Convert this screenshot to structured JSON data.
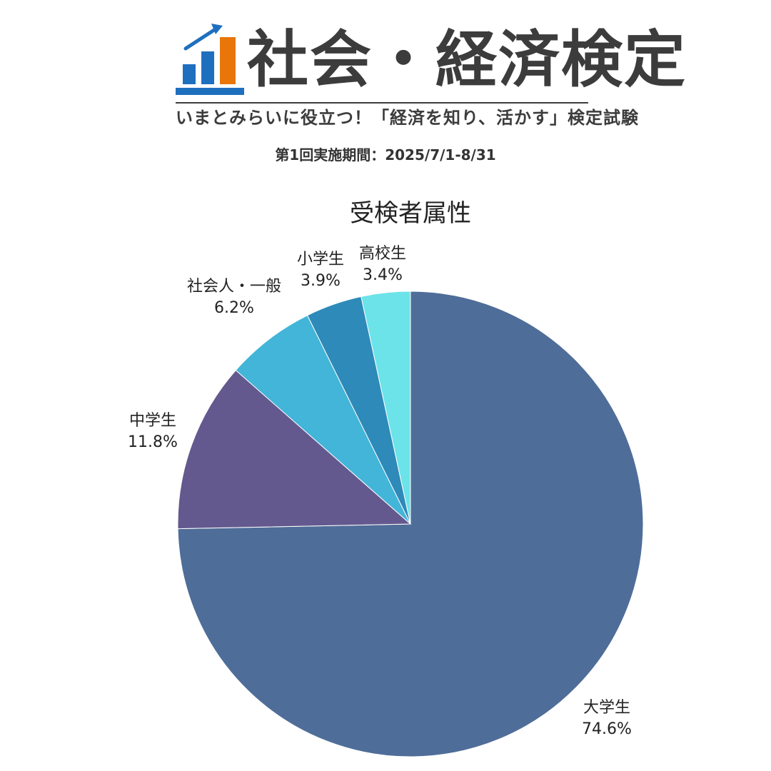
{
  "header": {
    "brand_name": "社会・経済検定",
    "tagline": "いまとみらいに役立つ！「経済を知り、活かす」検定試験",
    "period": "第1回実施期間：2025/7/1-8/31",
    "logo": {
      "icon": "bar-chart-arrow-icon",
      "colors": {
        "bars": "#1F6FBF",
        "accent_bar": "#E8760A",
        "base": "#1F6FBF"
      }
    }
  },
  "chart_data": {
    "type": "pie",
    "title": "受検者属性",
    "start_angle": "12 o'clock",
    "direction": "clockwise",
    "slices": [
      {
        "label": "大学生",
        "value": 74.6,
        "value_label": "74.6%",
        "color": "#4F6D99"
      },
      {
        "label": "中学生",
        "value": 11.8,
        "value_label": "11.8%",
        "color": "#64598E"
      },
      {
        "label": "社会人・一般",
        "value": 6.2,
        "value_label": "6.2%",
        "color": "#42B5D8"
      },
      {
        "label": "小学生",
        "value": 3.9,
        "value_label": "3.9%",
        "color": "#2E8AB9"
      },
      {
        "label": "高校生",
        "value": 3.4,
        "value_label": "3.4%",
        "color": "#6BE3E9"
      }
    ]
  }
}
